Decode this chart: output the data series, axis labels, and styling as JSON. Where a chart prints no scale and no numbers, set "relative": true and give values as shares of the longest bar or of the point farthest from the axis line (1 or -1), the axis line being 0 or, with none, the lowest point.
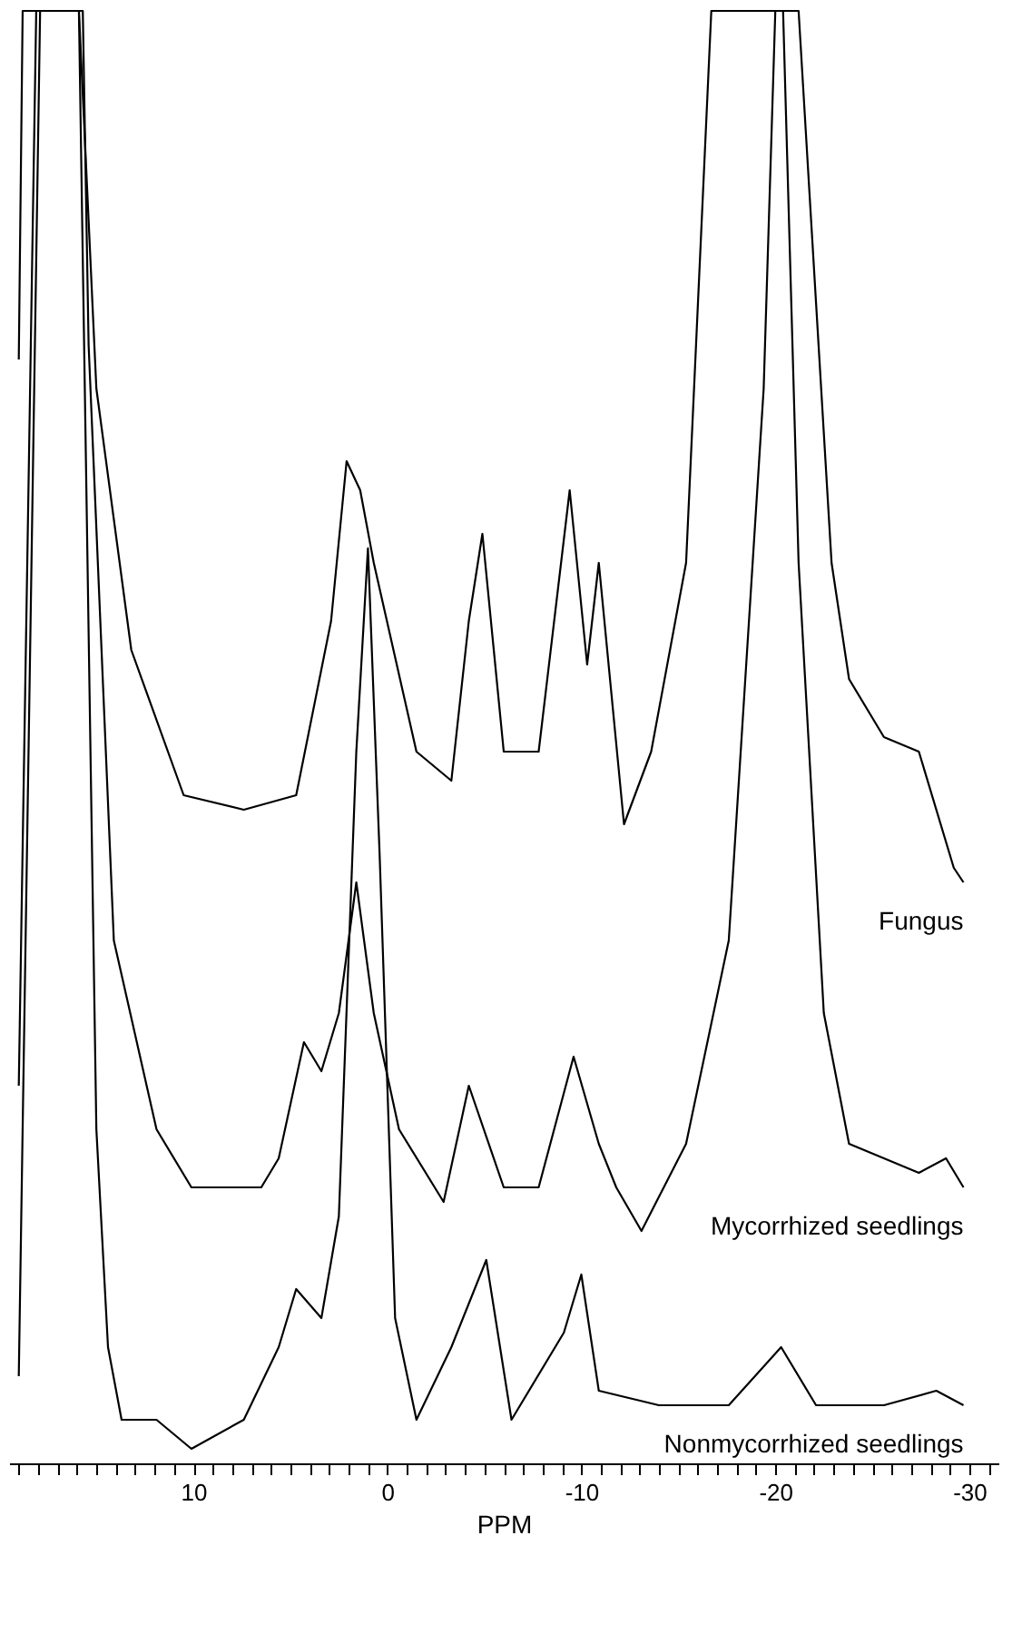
{
  "chart_data": {
    "type": "line",
    "relative": true,
    "xlabel": "PPM",
    "xlim": [
      19.5,
      -31.5
    ],
    "xticks": [
      {
        "value": 19,
        "label": null
      },
      {
        "value": 18,
        "label": null
      },
      {
        "value": 17,
        "label": null
      },
      {
        "value": 16,
        "label": null
      },
      {
        "value": 15,
        "label": null
      },
      {
        "value": 14,
        "label": null
      },
      {
        "value": 13,
        "label": null
      },
      {
        "value": 12,
        "label": null
      },
      {
        "value": 11,
        "label": null
      },
      10,
      {
        "value": 9,
        "label": null
      },
      {
        "value": 8,
        "label": null
      },
      {
        "value": 7,
        "label": null
      },
      {
        "value": 6,
        "label": null
      },
      {
        "value": 5,
        "label": null
      },
      {
        "value": 4,
        "label": null
      },
      {
        "value": 3,
        "label": null
      },
      {
        "value": 2,
        "label": null
      },
      {
        "value": 1,
        "label": null
      },
      0,
      {
        "value": -1,
        "label": null
      },
      {
        "value": -2,
        "label": null
      },
      {
        "value": -3,
        "label": null
      },
      {
        "value": -4,
        "label": null
      },
      {
        "value": -5,
        "label": null
      },
      {
        "value": -6,
        "label": null
      },
      {
        "value": -7,
        "label": null
      },
      {
        "value": -8,
        "label": null
      },
      {
        "value": -9,
        "label": null
      },
      -10,
      {
        "value": -11,
        "label": null
      },
      {
        "value": -12,
        "label": null
      },
      {
        "value": -13,
        "label": null
      },
      {
        "value": -14,
        "label": null
      },
      {
        "value": -15,
        "label": null
      },
      {
        "value": -16,
        "label": null
      },
      {
        "value": -17,
        "label": null
      },
      {
        "value": -18,
        "label": null
      },
      {
        "value": -19,
        "label": null
      },
      -20,
      {
        "value": -21,
        "label": null
      },
      {
        "value": -22,
        "label": null
      },
      {
        "value": -23,
        "label": null
      },
      {
        "value": -24,
        "label": null
      },
      {
        "value": -25,
        "label": null
      },
      {
        "value": -26,
        "label": null
      },
      {
        "value": -27,
        "label": null
      },
      {
        "value": -28,
        "label": null
      },
      {
        "value": -29,
        "label": null
      },
      -30,
      {
        "value": -31,
        "label": null
      }
    ],
    "grid": false,
    "legend": false,
    "marker": "none",
    "line_style": "solid",
    "series": [
      {
        "name": "Fungus",
        "color": "#000000",
        "x": [
          19.0,
          18.8,
          15.9,
          15.0,
          13.2,
          10.5,
          7.4,
          4.7,
          2.9,
          2.1,
          1.4,
          0.7,
          -1.5,
          -3.3,
          -4.2,
          -4.9,
          -6.0,
          -7.8,
          -9.4,
          -10.3,
          -10.9,
          -12.2,
          -13.6,
          -15.4,
          -16.7,
          -21.2,
          -22.9,
          -23.8,
          -25.6,
          -27.4,
          -29.2,
          -29.7
        ],
        "values": [
          0.76,
          1,
          1,
          0.74,
          0.56,
          0.46,
          0.45,
          0.46,
          0.58,
          0.69,
          0.67,
          0.62,
          0.49,
          0.47,
          0.58,
          0.64,
          0.49,
          0.49,
          0.67,
          0.55,
          0.62,
          0.44,
          0.49,
          0.62,
          1,
          1,
          0.62,
          0.54,
          0.5,
          0.49,
          0.41,
          0.4
        ]
      },
      {
        "name": "Mycorrhized seedlings",
        "color": "#000000",
        "x": [
          19.0,
          18.1,
          15.7,
          15.4,
          14.1,
          11.9,
          10.1,
          6.5,
          5.6,
          4.3,
          3.4,
          2.5,
          1.6,
          0.7,
          -0.6,
          -2.9,
          -4.2,
          -6.0,
          -7.8,
          -9.6,
          -10.9,
          -11.8,
          -13.1,
          -15.4,
          -17.6,
          -19.4,
          -20.0,
          -20.4,
          -21.2,
          -22.5,
          -23.8,
          -25.6,
          -27.4,
          -28.8,
          -29.7
        ],
        "values": [
          0.26,
          1,
          1,
          0.77,
          0.36,
          0.23,
          0.19,
          0.19,
          0.21,
          0.29,
          0.27,
          0.31,
          0.4,
          0.31,
          0.23,
          0.18,
          0.26,
          0.19,
          0.19,
          0.28,
          0.22,
          0.19,
          0.16,
          0.22,
          0.36,
          0.74,
          1,
          1,
          0.62,
          0.31,
          0.22,
          0.21,
          0.2,
          0.21,
          0.19
        ]
      },
      {
        "name": "Nonmycorrhized seedlings",
        "color": "#000000",
        "x": [
          19.0,
          17.9,
          15.9,
          15.0,
          14.4,
          13.7,
          11.9,
          10.1,
          7.4,
          5.6,
          4.7,
          3.4,
          2.5,
          1.6,
          1.0,
          0.4,
          -0.4,
          -1.5,
          -3.3,
          -5.1,
          -6.4,
          -9.1,
          -10.0,
          -10.9,
          -14.0,
          -17.6,
          -20.3,
          -22.1,
          -25.6,
          -28.3,
          -29.7
        ],
        "values": [
          0.06,
          1,
          1,
          0.23,
          0.08,
          0.03,
          0.03,
          0.01,
          0.03,
          0.08,
          0.12,
          0.1,
          0.17,
          0.49,
          0.63,
          0.42,
          0.1,
          0.03,
          0.08,
          0.14,
          0.03,
          0.09,
          0.13,
          0.05,
          0.04,
          0.04,
          0.08,
          0.04,
          0.04,
          0.05,
          0.04
        ]
      }
    ]
  }
}
